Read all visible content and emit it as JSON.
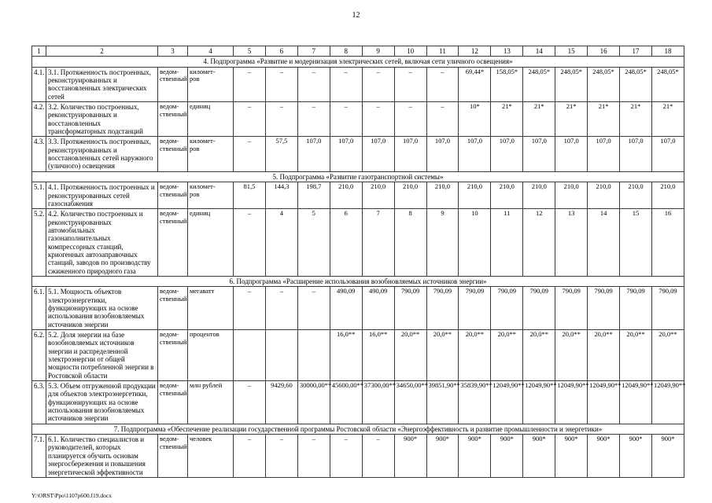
{
  "page": {
    "number": "12",
    "footer_path": "Y:\\ORST\\Ppo\\1107p600.f19.docx"
  },
  "table": {
    "column_numbers": [
      "1",
      "2",
      "3",
      "4",
      "5",
      "6",
      "7",
      "8",
      "9",
      "10",
      "11",
      "12",
      "13",
      "14",
      "15",
      "16",
      "17",
      "18"
    ],
    "sections": [
      {
        "title": "4. Подпрограмма «Развитие и модернизация электрических сетей, включая сети уличного освещения»",
        "rows": [
          {
            "num": "4.1.",
            "indicator": "3.1. Протяженность построенных, реконструированных и восстановленных электрических сетей",
            "kind": "ведом-\nственный",
            "unit": "километ-\nров",
            "values": [
              "–",
              "–",
              "–",
              "–",
              "–",
              "–",
              "–",
              "69,44*",
              "158,05*",
              "248,05*",
              "248,05*",
              "248,05*",
              "248,05*",
              "248,05*"
            ]
          },
          {
            "num": "4.2.",
            "indicator": "3.2. Количество построенных, реконструированных и восстановленных трансформаторных подстанций",
            "kind": "ведом-\nственный",
            "unit": "единиц",
            "values": [
              "–",
              "–",
              "–",
              "–",
              "–",
              "–",
              "–",
              "10*",
              "21*",
              "21*",
              "21*",
              "21*",
              "21*",
              "21*"
            ]
          },
          {
            "num": "4.3.",
            "indicator": "3.3. Протяженность построенных, реконструированных и восстановленных сетей наружного (уличного) освещения",
            "kind": "ведом-\nственный",
            "unit": "километ-\nров",
            "values": [
              "–",
              "57,5",
              "107,0",
              "107,0",
              "107,0",
              "107,0",
              "107,0",
              "107,0",
              "107,0",
              "107,0",
              "107,0",
              "107,0",
              "107,0",
              "107,0"
            ]
          }
        ]
      },
      {
        "title": "5. Подпрограмма «Развитие газотранспортной системы»",
        "rows": [
          {
            "num": "5.1.",
            "indicator": "4.1. Протяженность построенных и реконструированных сетей газоснабжения",
            "kind": "ведом-\nственный",
            "unit": "километ-\nров",
            "values": [
              "81,5",
              "144,3",
              "198,7",
              "210,0",
              "210,0",
              "210,0",
              "210,0",
              "210,0",
              "210,0",
              "210,0",
              "210,0",
              "210,0",
              "210,0",
              "210,0"
            ]
          },
          {
            "num": "5.2.",
            "indicator": "4.2. Количество построенных и реконструированных автомобильных газонаполнительных компрессорных станций, криогенных автозаправочных станций, заводов по производству сжиженного природного газа",
            "kind": "ведом-\nственный",
            "unit": "единиц",
            "values": [
              "–",
              "4",
              "5",
              "6",
              "7",
              "8",
              "9",
              "10",
              "11",
              "12",
              "13",
              "14",
              "15",
              "16"
            ]
          }
        ]
      },
      {
        "title": "6. Подпрограмма «Расширение использования возобновляемых источников энергии»",
        "rows": [
          {
            "num": "6.1.",
            "indicator": "5.1. Мощность объектов электроэнергетики, функционирующих на основе использования возобновляемых источников энергии",
            "kind": "ведом-\nственный",
            "unit": "мегаватт",
            "values": [
              "–",
              "–",
              "–",
              "490,09",
              "490,09",
              "790,09",
              "790,09",
              "790,09",
              "790,09",
              "790,09",
              "790,09",
              "790,09",
              "790,09",
              "790,09"
            ]
          },
          {
            "num": "6.2.",
            "indicator": "5.2. Доля энергии на базе возобновляемых источников энергии и распределенной электроэнергии от общей мощности потребленной энергии в Ростовской области",
            "kind": "ведом-\nственный",
            "unit": "процентов",
            "values": [
              "",
              "",
              "",
              "16,0**",
              "16,0**",
              "20,0**",
              "20,0**",
              "20,0**",
              "20,0**",
              "20,0**",
              "20,0**",
              "20,0**",
              "20,0**",
              "20,0**"
            ]
          },
          {
            "num": "6.3.",
            "indicator": "5.3. Объем отгруженной продукции для объектов электроэнергетики, функционирующих на основе использования возобновляемых источников энергии",
            "kind": "ведом-\nственный",
            "unit": "млн рублей",
            "values": [
              "–",
              "9429,60",
              "30000,00**",
              "45600,00**",
              "37300,00**",
              "34650,00**",
              "39851,90**",
              "35839,90**",
              "12049,90**",
              "12049,90**",
              "12049,90**",
              "12049,90**",
              "12049,90**",
              "12049,90**"
            ]
          }
        ]
      },
      {
        "title": "7. Подпрограмма «Обеспечение реализации государственной программы Ростовской области «Энергоэффективность и развитие промышленности и энергетики»",
        "rows": [
          {
            "num": "7.1.",
            "indicator": "6.1. Количество специалистов и руководителей, которых планируется обучить основам энергосбережения и повышения энергетической эффективности",
            "kind": "ведом-\nственный",
            "unit": "человек",
            "values": [
              "–",
              "–",
              "–",
              "–",
              "–",
              "900*",
              "900*",
              "900*",
              "900*",
              "900*",
              "900*",
              "900*",
              "900*",
              "900*"
            ]
          }
        ]
      }
    ]
  }
}
